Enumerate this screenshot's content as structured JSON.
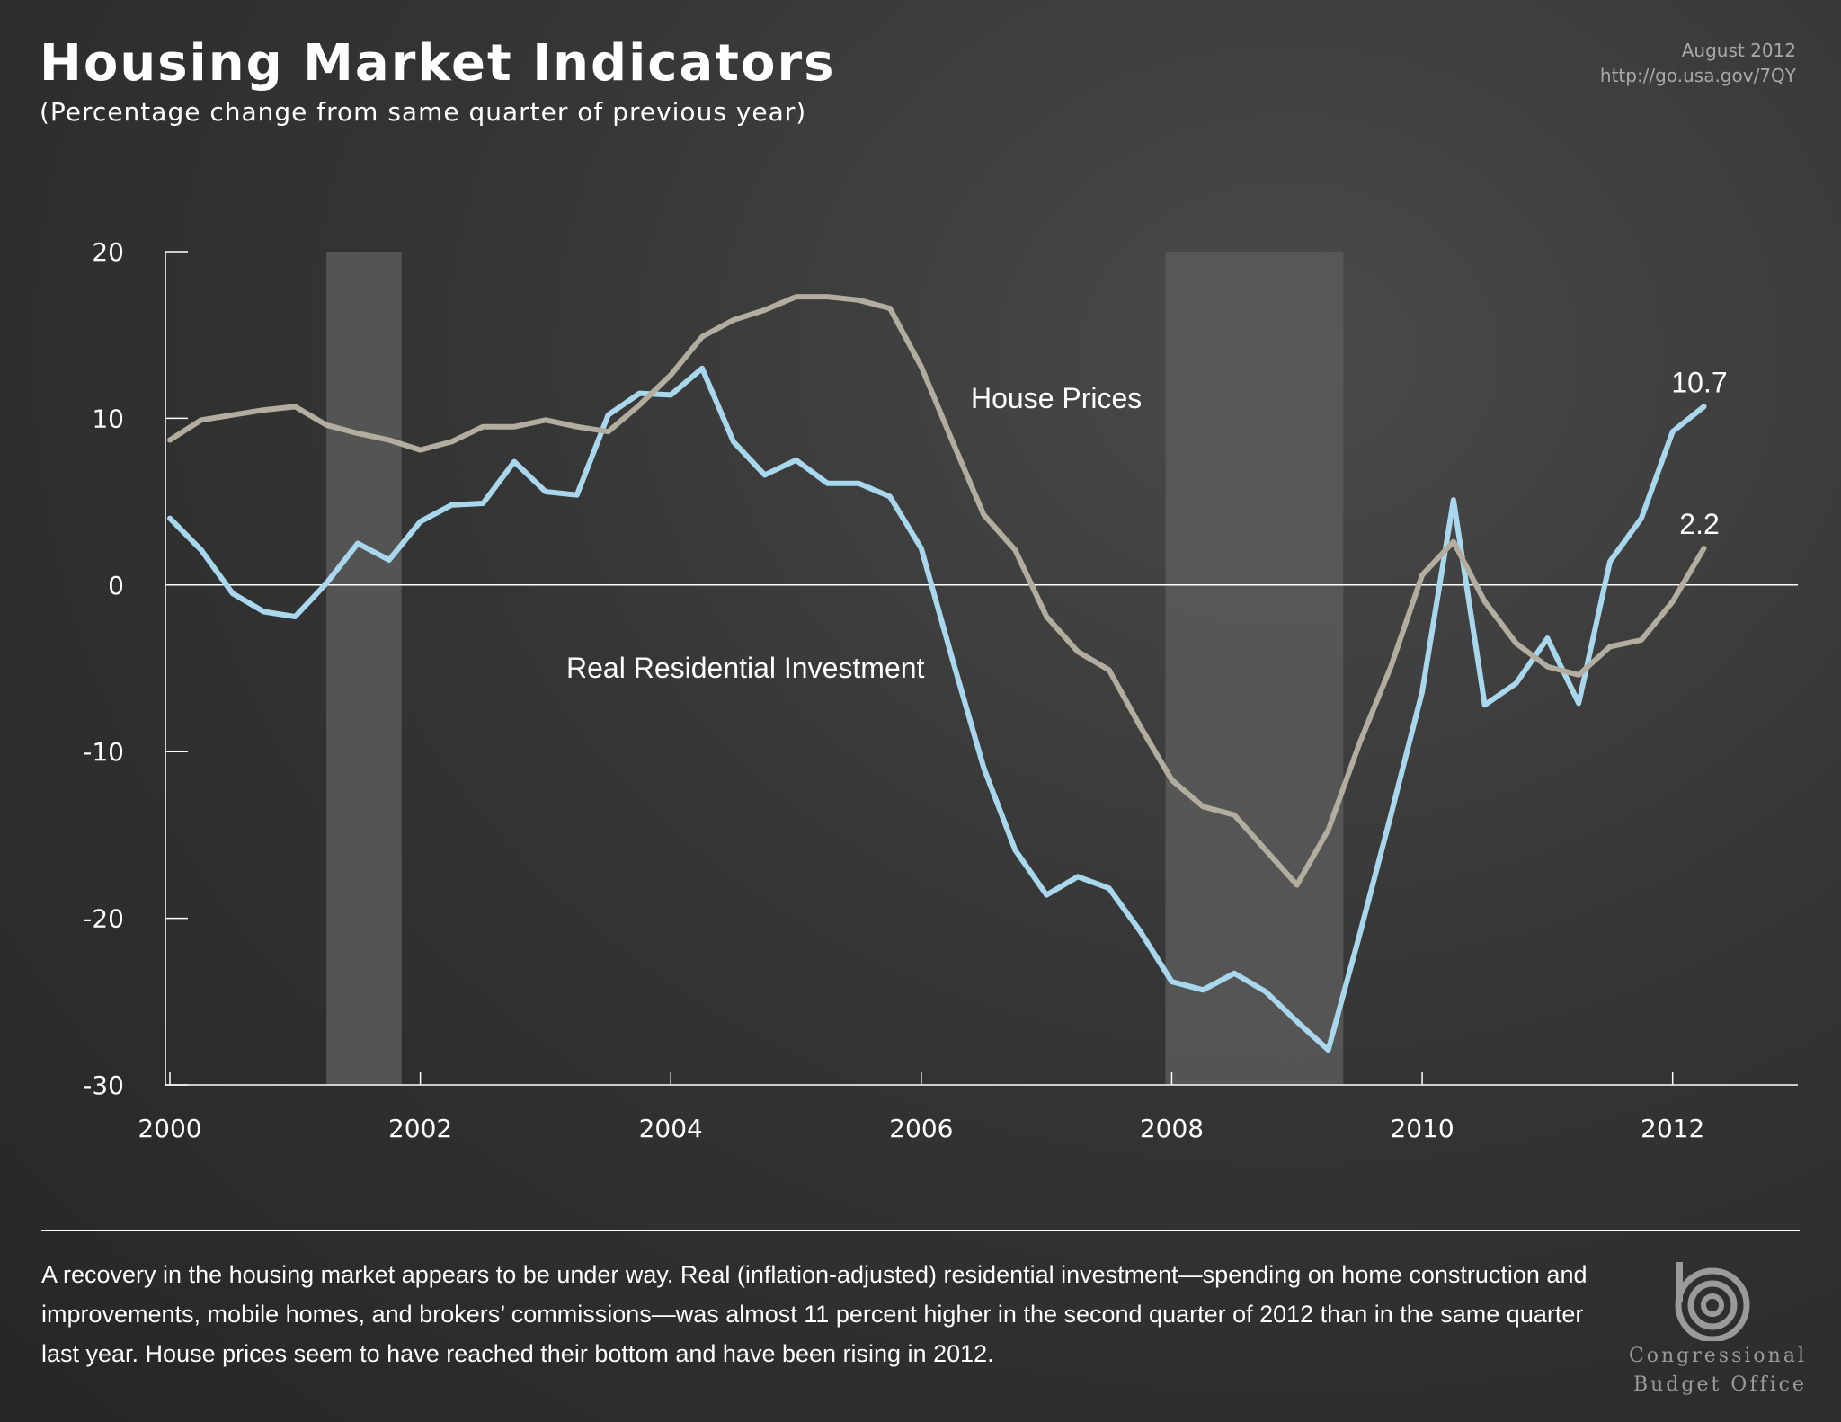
{
  "header": {
    "title": "Housing Market Indicators",
    "subtitle": "(Percentage change from same quarter of previous year)",
    "date": "August 2012",
    "url": "http://go.usa.gov/7QY"
  },
  "caption": "A recovery in the housing market appears to be under way. Real (inflation-adjusted) residential investment—spending on home construction and improvements, mobile homes, and brokers’ commissions—was almost 11 percent higher in the second quarter of 2012 than in the same quarter last year. House prices seem to have reached their bottom and have been rising in 2012.",
  "logo": {
    "line1": "Congressional",
    "line2": "Budget Office"
  },
  "colors": {
    "investment": "#a9d8ee",
    "prices": "#b3ad9f",
    "recession": "#5a5a5a",
    "axis": "#ffffff"
  },
  "chart_data": {
    "type": "line",
    "title": "Housing Market Indicators",
    "subtitle": "(Percentage change from same quarter of previous year)",
    "xlabel": "",
    "ylabel": "",
    "ylim": [
      -30,
      20
    ],
    "yticks": [
      20,
      10,
      0,
      -10,
      -20,
      -30
    ],
    "xlim": [
      2000,
      2013
    ],
    "xticks": [
      2000,
      2002,
      2004,
      2006,
      2008,
      2010,
      2012
    ],
    "grid": false,
    "recessions": [
      [
        2001.25,
        2001.85
      ],
      [
        2007.95,
        2009.37
      ]
    ],
    "series": [
      {
        "name": "Real Residential Investment",
        "end_label": "10.7",
        "x": [
          2000.0,
          2000.25,
          2000.5,
          2000.75,
          2001.0,
          2001.25,
          2001.5,
          2001.75,
          2002.0,
          2002.25,
          2002.5,
          2002.75,
          2003.0,
          2003.25,
          2003.5,
          2003.75,
          2004.0,
          2004.25,
          2004.5,
          2004.75,
          2005.0,
          2005.25,
          2005.5,
          2005.75,
          2006.0,
          2006.25,
          2006.5,
          2006.75,
          2007.0,
          2007.25,
          2007.5,
          2007.75,
          2008.0,
          2008.25,
          2008.5,
          2008.75,
          2009.0,
          2009.25,
          2009.5,
          2009.75,
          2010.0,
          2010.25,
          2010.5,
          2010.75,
          2011.0,
          2011.25,
          2011.5,
          2011.75,
          2012.0,
          2012.25
        ],
        "values": [
          4.0,
          2.1,
          -0.5,
          -1.6,
          -1.9,
          0.1,
          2.5,
          1.5,
          3.8,
          4.8,
          4.9,
          7.4,
          5.6,
          5.4,
          10.2,
          11.5,
          11.4,
          13.0,
          8.6,
          6.6,
          7.5,
          6.1,
          6.1,
          5.3,
          2.2,
          -4.5,
          -11.0,
          -15.9,
          -18.6,
          -17.5,
          -18.2,
          -20.8,
          -23.8,
          -24.3,
          -23.3,
          -24.4,
          -26.2,
          -27.9,
          -21.0,
          -13.8,
          -6.4,
          5.1,
          -7.2,
          -5.9,
          -3.2,
          -7.1,
          1.4,
          4.0,
          9.2,
          10.7
        ]
      },
      {
        "name": "House Prices",
        "end_label": "2.2",
        "x": [
          2000.0,
          2000.25,
          2000.5,
          2000.75,
          2001.0,
          2001.25,
          2001.5,
          2001.75,
          2002.0,
          2002.25,
          2002.5,
          2002.75,
          2003.0,
          2003.25,
          2003.5,
          2003.75,
          2004.0,
          2004.25,
          2004.5,
          2004.75,
          2005.0,
          2005.25,
          2005.5,
          2005.75,
          2006.0,
          2006.25,
          2006.5,
          2006.75,
          2007.0,
          2007.25,
          2007.5,
          2007.75,
          2008.0,
          2008.25,
          2008.5,
          2008.75,
          2009.0,
          2009.25,
          2009.5,
          2009.75,
          2010.0,
          2010.25,
          2010.5,
          2010.75,
          2011.0,
          2011.25,
          2011.5,
          2011.75,
          2012.0,
          2012.25
        ],
        "values": [
          8.7,
          9.9,
          10.2,
          10.5,
          10.7,
          9.6,
          9.1,
          8.7,
          8.1,
          8.6,
          9.5,
          9.5,
          9.9,
          9.5,
          9.2,
          10.8,
          12.6,
          14.9,
          15.9,
          16.5,
          17.3,
          17.3,
          17.1,
          16.6,
          13.1,
          8.6,
          4.2,
          2.1,
          -1.9,
          -4.0,
          -5.1,
          -8.5,
          -11.7,
          -13.3,
          -13.8,
          -15.9,
          -18.0,
          -14.7,
          -9.5,
          -4.9,
          0.6,
          2.6,
          -1.0,
          -3.5,
          -4.9,
          -5.4,
          -3.7,
          -3.3,
          -1.0,
          2.2
        ]
      }
    ]
  }
}
